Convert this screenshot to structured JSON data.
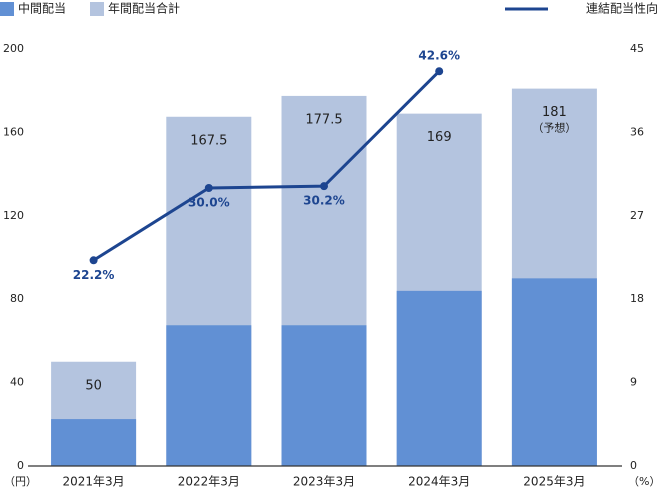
{
  "chart_data": {
    "type": "bar",
    "categories": [
      "2021年3月",
      "2022年3月",
      "2023年3月",
      "2024年3月",
      "2025年3月"
    ],
    "series": [
      {
        "name": "中間配当",
        "color": "#6190d4",
        "values": [
          22.5,
          67.5,
          67.5,
          84,
          90
        ]
      },
      {
        "name": "年間配当合計",
        "color": "#b4c4df",
        "values": [
          50,
          167.5,
          177.5,
          169,
          181
        ]
      },
      {
        "name": "連結配当性向",
        "color": "#1d4590",
        "type": "line",
        "axis": "y2",
        "values": [
          22.2,
          30.0,
          30.2,
          42.6,
          null
        ],
        "value_labels": [
          "22.2%",
          "30.0%",
          "30.2%",
          "42.6%",
          null
        ]
      }
    ],
    "annotations": [
      "（予想）"
    ],
    "ylabel": "（円）",
    "y2label": "（%）",
    "ylim": [
      0,
      200
    ],
    "yticks": [
      0,
      40,
      80,
      120,
      160,
      200
    ],
    "y2lim": [
      0,
      45
    ],
    "y2ticks": [
      0,
      9,
      18,
      27,
      36,
      45
    ],
    "grid": false,
    "legend": "top"
  }
}
